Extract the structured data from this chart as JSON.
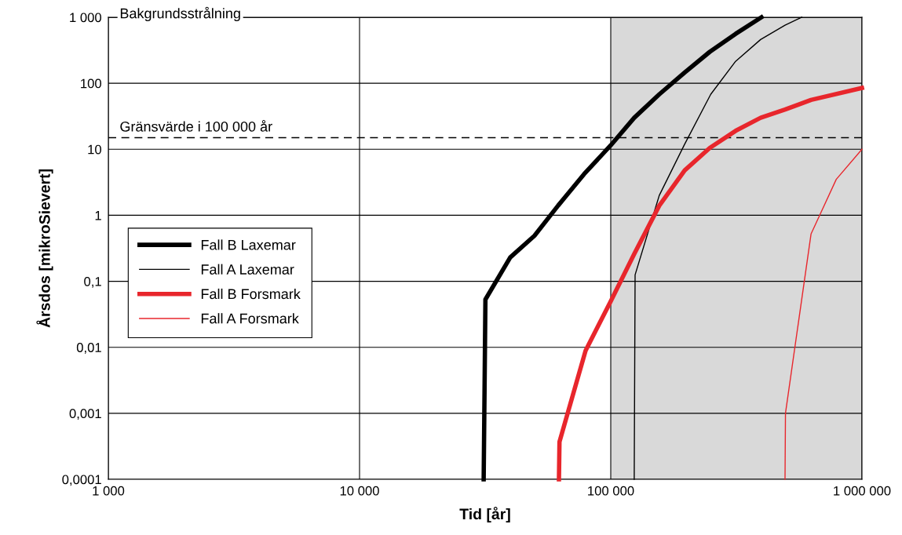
{
  "chart_data": {
    "type": "line",
    "xlabel": "Tid [år]",
    "ylabel": "Årsdos [mikroSievert]",
    "log": "xy",
    "grid": true,
    "legend": "left",
    "marker": "none",
    "line_style": "solid",
    "xlim": [
      1000,
      1000000
    ],
    "ylim": [
      0.0001,
      1000
    ],
    "xticks": [
      {
        "value": 1000,
        "label": "1 000"
      },
      {
        "value": 10000,
        "label": "10 000"
      },
      {
        "value": 100000,
        "label": "100 000"
      },
      {
        "value": 1000000,
        "label": "1 000 000"
      }
    ],
    "yticks": [
      {
        "value": 0.0001,
        "label": "0,0001"
      },
      {
        "value": 0.001,
        "label": "0,001"
      },
      {
        "value": 0.01,
        "label": "0,01"
      },
      {
        "value": 0.1,
        "label": "0,1"
      },
      1,
      10,
      100,
      {
        "value": 1000,
        "label": "1 000"
      }
    ],
    "series": [
      {
        "name": "Fall B Laxemar",
        "color": "#000000",
        "x": [
          31200,
          31700,
          39800,
          49700,
          61700,
          78300,
          100000,
          124000,
          156000,
          197000,
          248000,
          314000,
          398000
        ],
        "values": [
          0.0001,
          0.053,
          0.23,
          0.49,
          1.4,
          4.2,
          11.5,
          30,
          68,
          146,
          300,
          560,
          1000
        ]
      },
      {
        "name": "Fall A Laxemar",
        "color": "#000000",
        "x": [
          124000,
          125000,
          156000,
          197000,
          250000,
          314000,
          395000,
          494000,
          576000
        ],
        "values": [
          0.0001,
          0.125,
          2.0,
          12,
          68,
          215,
          460,
          760,
          1000
        ]
      },
      {
        "name": "Fall B Forsmark",
        "color": "#e8262c",
        "x": [
          62200,
          62500,
          79400,
          100000,
          124000,
          156000,
          197000,
          248000,
          314000,
          395000,
          494000,
          627000,
          1000000
        ],
        "values": [
          0.0001,
          0.00037,
          0.0089,
          0.05,
          0.26,
          1.4,
          4.8,
          10.5,
          19,
          30,
          40,
          56,
          85
        ]
      },
      {
        "name": "Fall A Forsmark",
        "color": "#e8262c",
        "x": [
          494000,
          496000,
          627000,
          790000,
          1000000
        ],
        "values": [
          0.0001,
          0.001,
          0.52,
          3.5,
          10
        ]
      }
    ],
    "ref_lines": [
      {
        "axis": "y",
        "value": 1000,
        "label": "Bakgrundsstrålning",
        "color": "#000000",
        "line_style": "solid"
      },
      {
        "axis": "y",
        "value": 15,
        "label": "Gränsvärde i 100 000 år",
        "color": "#000000",
        "line_style": "dashed"
      }
    ],
    "bands": [
      {
        "axis": "x",
        "from": 100000,
        "to": 1000000,
        "color": "#d9d9d9"
      }
    ]
  }
}
